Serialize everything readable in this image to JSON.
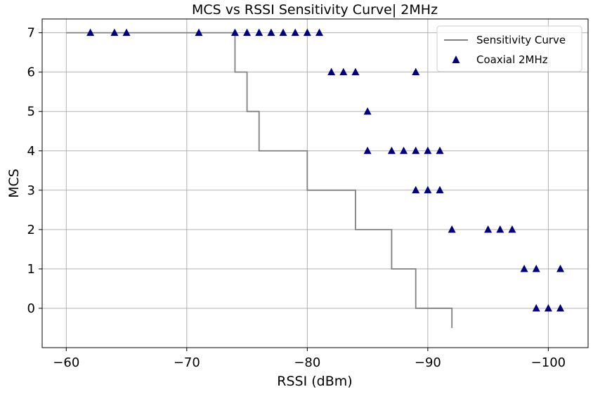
{
  "chart_data": {
    "type": "scatter",
    "title": "MCS vs RSSI Sensitivity Curve| 2MHz",
    "xlabel": "RSSI (dBm)",
    "ylabel": "MCS",
    "xlim": [
      -58,
      -103.3
    ],
    "ylim": [
      -1,
      7.35
    ],
    "x_ticks": [
      -60,
      -70,
      -80,
      -90,
      -100
    ],
    "x_tick_labels": [
      "−60",
      "−70",
      "−80",
      "−90",
      "−100"
    ],
    "y_ticks": [
      0,
      1,
      2,
      3,
      4,
      5,
      6,
      7
    ],
    "y_tick_labels": [
      "0",
      "1",
      "2",
      "3",
      "4",
      "5",
      "6",
      "7"
    ],
    "grid": true,
    "legend_position": "top-right",
    "colors": {
      "curve": "#808080",
      "points": "#00007f",
      "grid": "#b0b0b0",
      "frame": "#000000"
    },
    "series": [
      {
        "name": "Sensitivity Curve",
        "kind": "line",
        "x": [
          -60,
          -74,
          -74,
          -75,
          -75,
          -76,
          -76,
          -80,
          -80,
          -84,
          -84,
          -87,
          -87,
          -89,
          -89,
          -92,
          -92
        ],
        "y": [
          7,
          7,
          6,
          6,
          5,
          5,
          4,
          4,
          3,
          3,
          2,
          2,
          1,
          1,
          0,
          0,
          -0.5
        ]
      },
      {
        "name": "Coaxial 2MHz",
        "kind": "scatter",
        "marker": "triangle",
        "points": [
          [
            -62,
            7
          ],
          [
            -64,
            7
          ],
          [
            -65,
            7
          ],
          [
            -71,
            7
          ],
          [
            -74,
            7
          ],
          [
            -75,
            7
          ],
          [
            -76,
            7
          ],
          [
            -77,
            7
          ],
          [
            -78,
            7
          ],
          [
            -79,
            7
          ],
          [
            -80,
            7
          ],
          [
            -81,
            7
          ],
          [
            -82,
            6
          ],
          [
            -83,
            6
          ],
          [
            -84,
            6
          ],
          [
            -89,
            6
          ],
          [
            -85,
            5
          ],
          [
            -85,
            4
          ],
          [
            -87,
            4
          ],
          [
            -88,
            4
          ],
          [
            -89,
            4
          ],
          [
            -90,
            4
          ],
          [
            -91,
            4
          ],
          [
            -89,
            3
          ],
          [
            -90,
            3
          ],
          [
            -91,
            3
          ],
          [
            -92,
            2
          ],
          [
            -95,
            2
          ],
          [
            -96,
            2
          ],
          [
            -97,
            2
          ],
          [
            -98,
            1
          ],
          [
            -99,
            1
          ],
          [
            -101,
            1
          ],
          [
            -99,
            0
          ],
          [
            -100,
            0
          ],
          [
            -101,
            0
          ]
        ]
      }
    ]
  }
}
